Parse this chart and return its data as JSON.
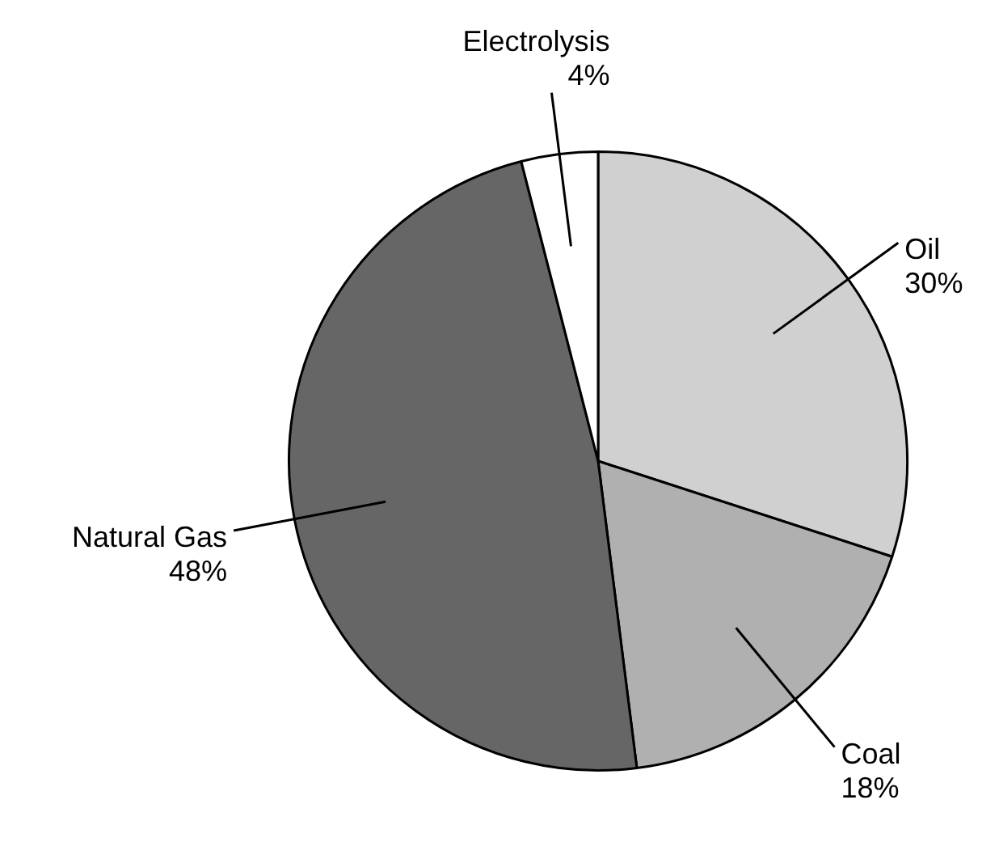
{
  "chart_data": {
    "type": "pie",
    "categories": [
      "Oil",
      "Coal",
      "Natural Gas",
      "Electrolysis"
    ],
    "values": [
      30,
      18,
      48,
      4
    ],
    "colors": [
      "#d0d0d0",
      "#b0b0b0",
      "#666666",
      "#ffffff"
    ],
    "value_labels": [
      "30%",
      "18%",
      "48%",
      "4%"
    ],
    "legend": false
  }
}
